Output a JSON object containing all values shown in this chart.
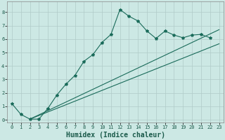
{
  "xlabel": "Humidex (Indice chaleur)",
  "bg_color": "#cce8e4",
  "line_color": "#1a6b5a",
  "grid_color": "#b0cbc8",
  "xlim": [
    -0.5,
    23.5
  ],
  "ylim": [
    -0.2,
    8.8
  ],
  "xticks": [
    0,
    1,
    2,
    3,
    4,
    5,
    6,
    7,
    8,
    9,
    10,
    11,
    12,
    13,
    14,
    15,
    16,
    17,
    18,
    19,
    20,
    21,
    22,
    23
  ],
  "yticks": [
    0,
    1,
    2,
    3,
    4,
    5,
    6,
    7,
    8
  ],
  "line1_x": [
    0,
    1,
    2,
    3,
    4,
    5,
    6,
    7,
    8,
    9,
    10,
    11,
    12,
    13,
    14,
    15,
    16,
    17,
    18,
    19,
    20,
    21,
    22
  ],
  "line1_y": [
    1.2,
    0.4,
    0.05,
    0.05,
    0.85,
    1.85,
    2.65,
    3.3,
    4.35,
    4.85,
    5.75,
    6.35,
    8.2,
    7.7,
    7.35,
    6.6,
    6.05,
    6.6,
    6.3,
    6.1,
    6.3,
    6.35,
    6.1
  ],
  "line2_x": [
    2,
    23
  ],
  "line2_y": [
    0.05,
    5.65
  ],
  "line3_x": [
    2,
    23
  ],
  "line3_y": [
    0.05,
    6.7
  ],
  "figsize": [
    3.2,
    2.0
  ],
  "dpi": 100,
  "xlabel_fontsize": 7,
  "tick_fontsize": 5,
  "linewidth": 0.8,
  "markersize": 3
}
